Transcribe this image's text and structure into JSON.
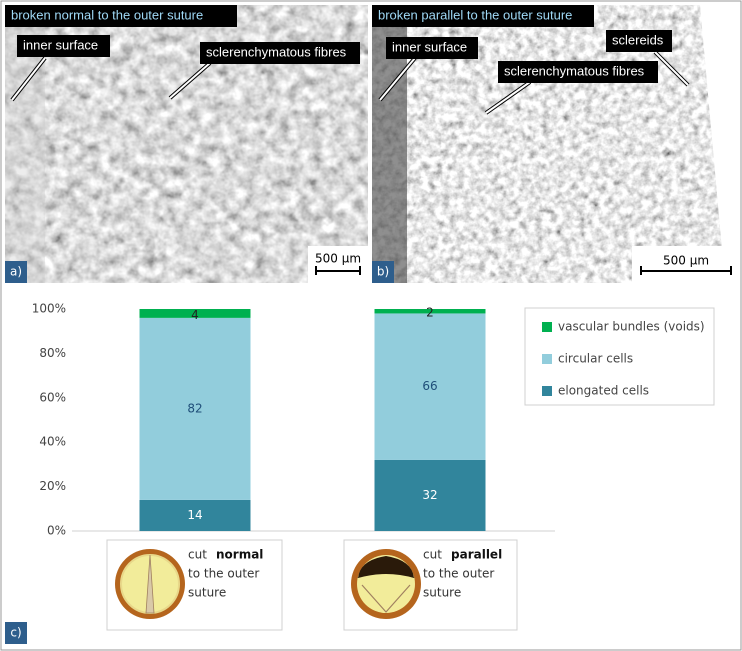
{
  "panels": [
    {
      "label": "a)",
      "title": "broken normal to the outer suture",
      "scale": "500 µm",
      "annotations": [
        "inner surface",
        "sclerenchymatous fibres"
      ]
    },
    {
      "label": "b)",
      "title": "broken parallel to the outer suture",
      "scale": "500 µm",
      "annotations": [
        "inner surface",
        "sclerenchymatous fibres",
        "sclereids"
      ]
    }
  ],
  "chart_data": {
    "type": "stacked_bar",
    "panel_label": "c)",
    "categories": [
      "normal",
      "parallel"
    ],
    "category_text": {
      "before": "cut",
      "after": [
        "to the outer",
        "suture"
      ]
    },
    "series": [
      {
        "name": "elongated cells",
        "color": "#31859c",
        "values": [
          14,
          32
        ]
      },
      {
        "name": "circular cells",
        "color": "#92cddc",
        "values": [
          82,
          66
        ]
      },
      {
        "name": "vascular bundles (voids)",
        "color": "#00b050",
        "values": [
          4,
          2
        ]
      }
    ],
    "ylim": [
      0,
      100
    ],
    "yticks": [
      {
        "value": 0,
        "label": "0%"
      },
      {
        "value": 20,
        "label": "20%"
      },
      {
        "value": 40,
        "label": "40%"
      },
      {
        "value": 60,
        "label": "60%"
      },
      {
        "value": 80,
        "label": "80%"
      },
      {
        "value": 100,
        "label": "100%"
      }
    ],
    "grid": false,
    "legend": "right"
  }
}
